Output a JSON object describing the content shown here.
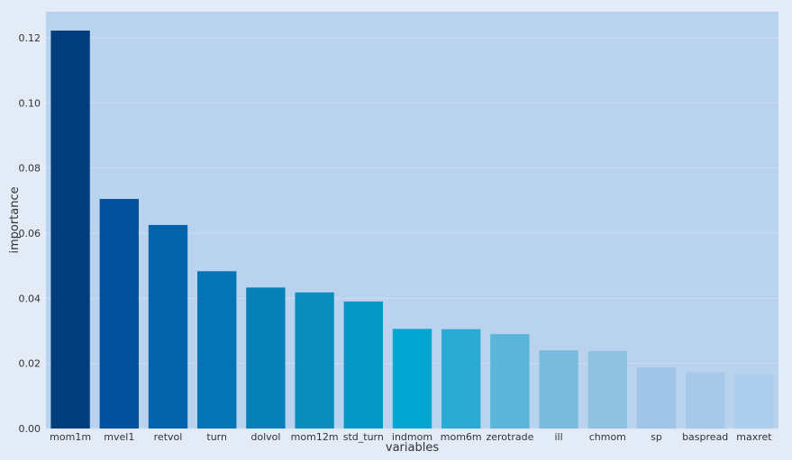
{
  "chart_data": {
    "type": "bar",
    "xlabel": "variables",
    "ylabel": "importance",
    "ylim": [
      0,
      0.128
    ],
    "yticks": [
      0.0,
      0.02,
      0.04,
      0.06,
      0.08,
      0.1,
      0.12
    ],
    "ytick_labels": [
      "0.00",
      "0.02",
      "0.04",
      "0.06",
      "0.08",
      "0.10",
      "0.12"
    ],
    "grid": true,
    "categories": [
      "mom1m",
      "mvel1",
      "retvol",
      "turn",
      "dolvol",
      "mom12m",
      "std_turn",
      "indmom",
      "mom6m",
      "zerotrade",
      "ill",
      "chmom",
      "sp",
      "baspread",
      "maxret"
    ],
    "values": [
      0.1222,
      0.0705,
      0.0625,
      0.0483,
      0.0433,
      0.0418,
      0.039,
      0.0306,
      0.0305,
      0.029,
      0.024,
      0.0238,
      0.0188,
      0.0173,
      0.0167
    ],
    "colors": [
      "#023e7d",
      "#02519d",
      "#0463a9",
      "#0474b4",
      "#0681b8",
      "#0b8dbe",
      "#0598c7",
      "#02a6d3",
      "#29abd4",
      "#5ab5d8",
      "#7bbcdc",
      "#90c1e1",
      "#9fc4e5",
      "#a6c8e9",
      "#accdeb"
    ],
    "plot_background": "#b9d3ee",
    "page_background": "#e3ebf7",
    "grid_color": "#cfdcef"
  }
}
